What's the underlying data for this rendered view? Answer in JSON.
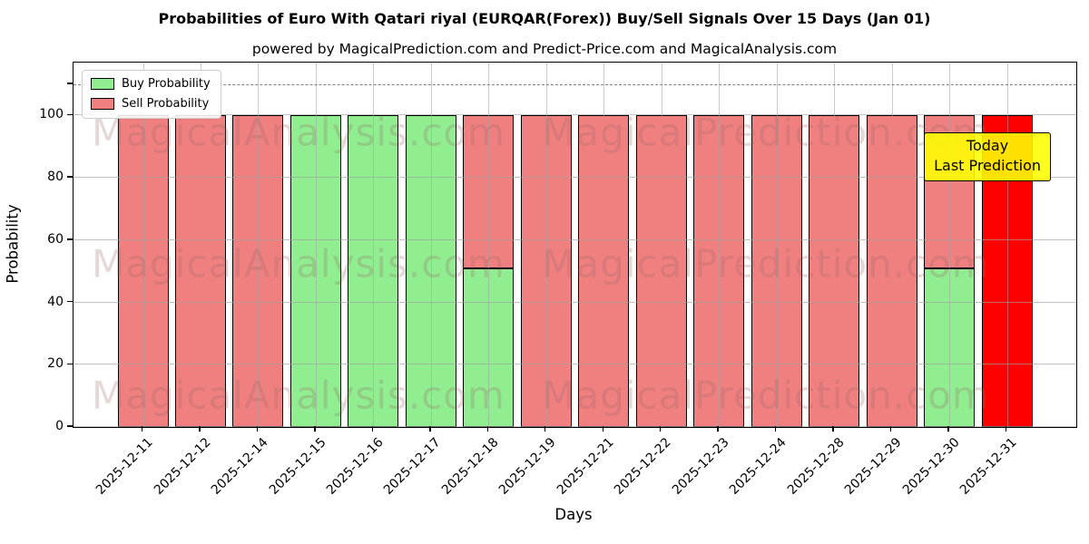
{
  "figure": {
    "title": "Probabilities of Euro With Qatari riyal (EURQAR(Forex)) Buy/Sell Signals Over 15 Days (Jan 01)",
    "subtitle": "powered by MagicalPrediction.com and Predict-Price.com and MagicalAnalysis.com"
  },
  "axes": {
    "xlabel": "Days",
    "ylabel": "Probability",
    "yticks": [
      0,
      20,
      40,
      60,
      80,
      100
    ],
    "unlabeled_ytick": 110,
    "ylim": [
      0,
      117
    ],
    "dashed_line_y": 110,
    "grid": true
  },
  "legend": {
    "items": [
      {
        "label": "Buy Probability",
        "color": "#90ee90"
      },
      {
        "label": "Sell Probability",
        "color": "#f08080"
      }
    ]
  },
  "annotation": {
    "line1": "Today",
    "line2": "Last Prediction",
    "bg_color": "#ffff00"
  },
  "watermarks": {
    "left": "MagicalAnalysis.com",
    "right": "MagicalPrediction.com"
  },
  "colors": {
    "buy": "#90ee90",
    "sell": "#f08080",
    "today": "#ff0000",
    "bar_edge": "#000000",
    "grid": "#b0b0b0",
    "dashed_line": "#7f7f7f",
    "annotation_bg": "#ffff00"
  },
  "chart_data": {
    "type": "bar",
    "stacked": true,
    "title": "Probabilities of Euro With Qatari riyal (EURQAR(Forex)) Buy/Sell Signals Over 15 Days (Jan 01)",
    "xlabel": "Days",
    "ylabel": "Probability",
    "ylim": [
      0,
      117
    ],
    "legend_position": "upper left",
    "grid": true,
    "categories": [
      "2025-12-11",
      "2025-12-12",
      "2025-12-14",
      "2025-12-15",
      "2025-12-16",
      "2025-12-17",
      "2025-12-18",
      "2025-12-19",
      "2025-12-21",
      "2025-12-22",
      "2025-12-23",
      "2025-12-24",
      "2025-12-28",
      "2025-12-29",
      "2025-12-30",
      "2025-12-31"
    ],
    "series": [
      {
        "name": "Buy Probability",
        "color": "#90ee90",
        "values": [
          0,
          0,
          0,
          100,
          100,
          100,
          51,
          0,
          0,
          0,
          0,
          0,
          0,
          0,
          51,
          0
        ]
      },
      {
        "name": "Sell Probability",
        "color": "#f08080",
        "values": [
          100,
          100,
          100,
          0,
          0,
          0,
          49,
          100,
          100,
          100,
          100,
          100,
          100,
          100,
          49,
          0
        ]
      },
      {
        "name": "Today / Last Prediction",
        "color": "#ff0000",
        "values": [
          0,
          0,
          0,
          0,
          0,
          0,
          0,
          0,
          0,
          0,
          0,
          0,
          0,
          0,
          0,
          100
        ]
      }
    ]
  }
}
